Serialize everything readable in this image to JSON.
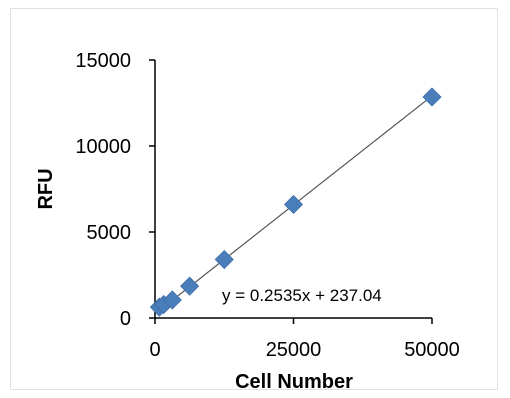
{
  "chart_data": {
    "type": "scatter",
    "xlabel": "Cell Number",
    "ylabel": "RFU",
    "xlim": [
      0,
      50000
    ],
    "ylim": [
      0,
      15000
    ],
    "xticks": [
      "0",
      "25000",
      "50000"
    ],
    "yticks": [
      "0",
      "5000",
      "10000",
      "15000"
    ],
    "grid": false,
    "series": [
      {
        "marker": "diamond",
        "color": "#4a7ebb",
        "points": [
          {
            "x": 781,
            "y": 630
          },
          {
            "x": 1563,
            "y": 780
          },
          {
            "x": 3125,
            "y": 1050
          },
          {
            "x": 6250,
            "y": 1850
          },
          {
            "x": 12500,
            "y": 3400
          },
          {
            "x": 25000,
            "y": 6600
          },
          {
            "x": 50000,
            "y": 12850
          }
        ]
      }
    ],
    "trendline": {
      "slope": 0.2535,
      "intercept": 237.04,
      "color": "#555555",
      "equation_label": "y = 0.2535x + 237.04"
    }
  }
}
